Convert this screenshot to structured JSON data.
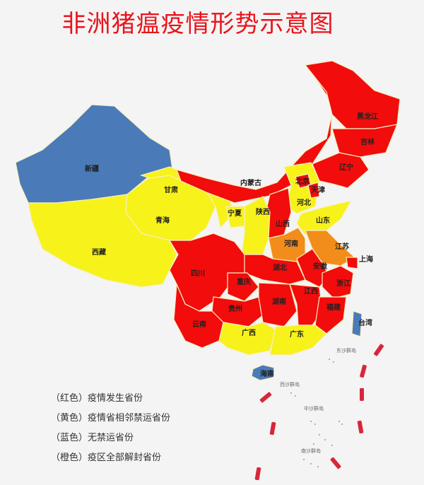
{
  "title": "非洲猪瘟疫情形势示意图",
  "colors": {
    "red": "#f20c0c",
    "yellow": "#f7f21a",
    "blue": "#4a7ab8",
    "orange": "#f28c1a"
  },
  "provinces": [
    {
      "name": "新疆",
      "status": "blue"
    },
    {
      "name": "西藏",
      "status": "yellow"
    },
    {
      "name": "青海",
      "status": "yellow"
    },
    {
      "name": "甘肃",
      "status": "yellow"
    },
    {
      "name": "内蒙古",
      "status": "red"
    },
    {
      "name": "黑龙江",
      "status": "red"
    },
    {
      "name": "吉林",
      "status": "red"
    },
    {
      "name": "辽宁",
      "status": "red"
    },
    {
      "name": "河北",
      "status": "yellow"
    },
    {
      "name": "北京",
      "status": "red"
    },
    {
      "name": "天津",
      "status": "red"
    },
    {
      "name": "山西",
      "status": "red"
    },
    {
      "name": "山东",
      "status": "yellow"
    },
    {
      "name": "陕西",
      "status": "yellow"
    },
    {
      "name": "宁夏",
      "status": "yellow"
    },
    {
      "name": "河南",
      "status": "orange"
    },
    {
      "name": "江苏",
      "status": "orange"
    },
    {
      "name": "上海",
      "status": "red"
    },
    {
      "name": "安徽",
      "status": "red"
    },
    {
      "name": "浙江",
      "status": "red"
    },
    {
      "name": "湖北",
      "status": "red"
    },
    {
      "name": "四川",
      "status": "red"
    },
    {
      "name": "重庆",
      "status": "red"
    },
    {
      "name": "贵州",
      "status": "red"
    },
    {
      "name": "云南",
      "status": "red"
    },
    {
      "name": "湖南",
      "status": "red"
    },
    {
      "name": "江西",
      "status": "red"
    },
    {
      "name": "福建",
      "status": "red"
    },
    {
      "name": "广西",
      "status": "yellow"
    },
    {
      "name": "广东",
      "status": "yellow"
    },
    {
      "name": "海南",
      "status": "blue"
    },
    {
      "name": "台湾",
      "status": "blue"
    }
  ],
  "islands": [
    "东沙群岛",
    "西沙群岛",
    "中沙群岛",
    "南沙群岛"
  ],
  "legend": [
    "（红色）疫情发生省份",
    "（黄色）疫情省相邻禁运省份",
    "（蓝色）无禁运省份",
    "（橙色）疫区全部解封省份"
  ]
}
